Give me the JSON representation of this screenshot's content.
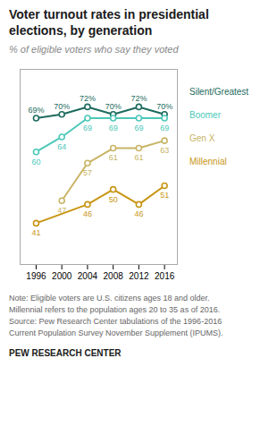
{
  "chart_data": {
    "type": "line",
    "title": "Voter turnout rates in presidential\nelections, by generation",
    "subtitle": "% of eligible voters who say they voted",
    "note": "Note: Eligible voters are U.S. citizens ages 18 and older.\nMillennial refers to the population ages 20 to 35 as of 2016.\nSource: Pew Research Center tabulations of the 1996-2016\nCurrent Population Survey November Supplement (IPUMS).",
    "footer": "PEW RESEARCH CENTER",
    "x": [
      1996,
      2000,
      2004,
      2008,
      2012,
      2016
    ],
    "series": [
      {
        "name": "Silent/Greatest",
        "color": "#1d6b5e",
        "values": [
          69,
          70,
          72,
          70,
          72,
          70
        ],
        "value_labels": [
          "69%",
          "70%",
          "72%",
          "70%",
          "72%",
          "70%"
        ]
      },
      {
        "name": "Boomer",
        "color": "#4dc8b8",
        "values": [
          60,
          64,
          69,
          69,
          69,
          69
        ]
      },
      {
        "name": "Gen X",
        "color": "#c8b464",
        "values": [
          null,
          47,
          57,
          61,
          61,
          63
        ]
      },
      {
        "name": "Millennial",
        "color": "#c89614",
        "values": [
          41,
          null,
          46,
          50,
          46,
          51
        ]
      }
    ],
    "xlim": [
      1993.5,
      2018
    ],
    "xticks": [
      1996,
      2000,
      2004,
      2008,
      2012,
      2016
    ],
    "ylim": [
      30,
      82
    ],
    "tick_labels": "x",
    "grid": false,
    "legend": "right",
    "data_labels": true,
    "marker": "circle"
  }
}
